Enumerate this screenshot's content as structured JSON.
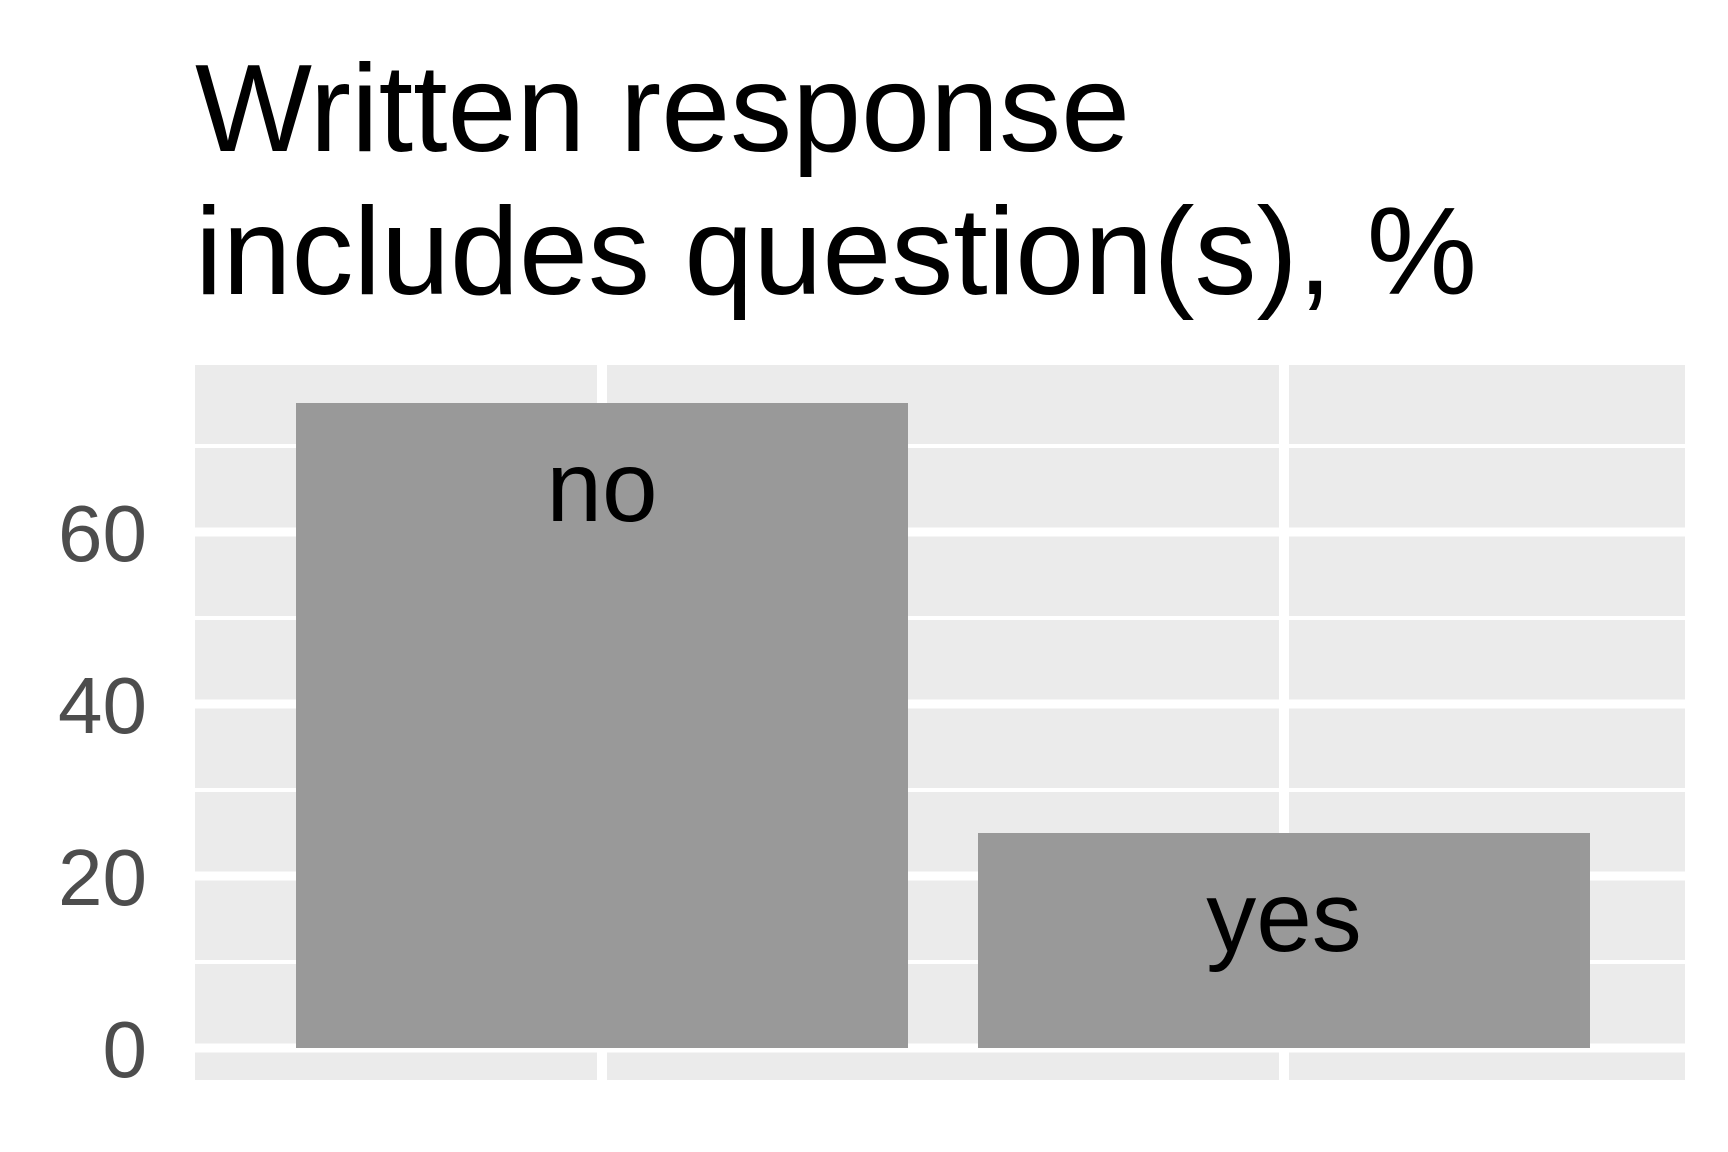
{
  "chart_data": {
    "type": "bar",
    "title_lines": [
      "Written response",
      "includes question(s), %"
    ],
    "categories": [
      "no",
      "yes"
    ],
    "values": [
      75,
      25
    ],
    "xlabel": "",
    "ylabel": "",
    "ylim": [
      0,
      80
    ],
    "yticks": [
      "0",
      "20",
      "40",
      "60"
    ],
    "grid": true,
    "legend": "none",
    "colors": {
      "bar": "#999999",
      "panel": "#ebebeb",
      "grid": "#ffffff"
    }
  }
}
